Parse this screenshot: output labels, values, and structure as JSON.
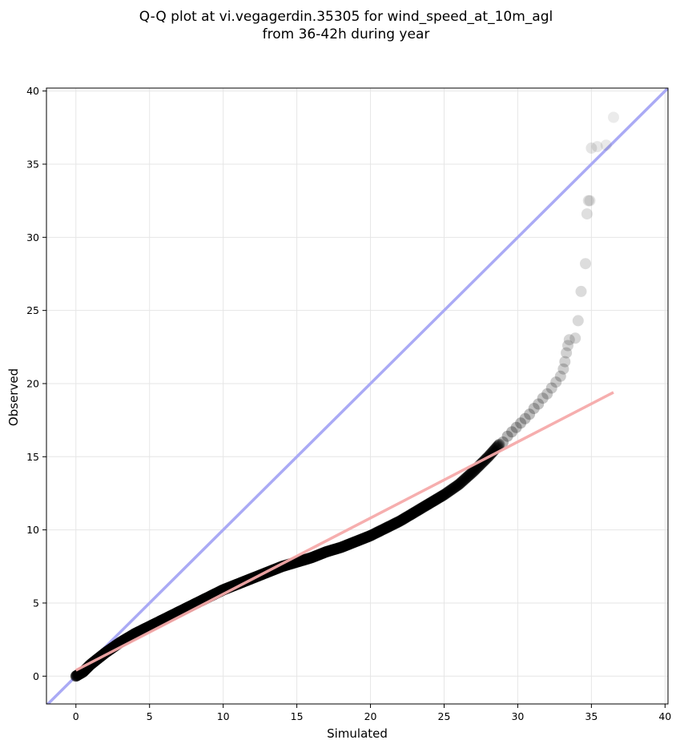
{
  "chart_data": {
    "type": "scatter",
    "title_line1": "Q-Q plot at vi.vegagerdin.35305 for wind_speed_at_10m_agl",
    "title_line2": "from 36-42h during year",
    "xlabel": "Simulated",
    "ylabel": "Observed",
    "xlim": [
      -2,
      40.2
    ],
    "ylim": [
      -1.9,
      40.2
    ],
    "xticks": [
      0,
      5,
      10,
      15,
      20,
      25,
      30,
      35,
      40
    ],
    "yticks": [
      0,
      5,
      10,
      15,
      20,
      25,
      30,
      35,
      40
    ],
    "grid": true,
    "colors": {
      "points": "#000000",
      "identity_line": "#aaaaf5",
      "fit_line": "#f5aaaa",
      "grid": "#e6e6e6"
    },
    "identity_line": {
      "x": [
        -2,
        40.2
      ],
      "y": [
        -2,
        40.2
      ]
    },
    "fit_line": {
      "x": [
        0,
        36.5
      ],
      "y": [
        0.4,
        19.4
      ]
    },
    "curve": [
      [
        0.0,
        0.0
      ],
      [
        0.5,
        0.3
      ],
      [
        1.0,
        0.8
      ],
      [
        2.0,
        1.6
      ],
      [
        3.0,
        2.3
      ],
      [
        4.0,
        2.9
      ],
      [
        5.0,
        3.4
      ],
      [
        6.0,
        3.9
      ],
      [
        7.0,
        4.4
      ],
      [
        8.0,
        4.9
      ],
      [
        9.0,
        5.4
      ],
      [
        10.0,
        5.9
      ],
      [
        11.0,
        6.3
      ],
      [
        12.0,
        6.7
      ],
      [
        13.0,
        7.1
      ],
      [
        14.0,
        7.5
      ],
      [
        15.0,
        7.8
      ],
      [
        16.0,
        8.1
      ],
      [
        17.0,
        8.5
      ],
      [
        18.0,
        8.8
      ],
      [
        19.0,
        9.2
      ],
      [
        20.0,
        9.6
      ],
      [
        21.0,
        10.1
      ],
      [
        22.0,
        10.6
      ],
      [
        23.0,
        11.2
      ],
      [
        24.0,
        11.8
      ],
      [
        25.0,
        12.4
      ],
      [
        26.0,
        13.1
      ],
      [
        27.0,
        14.0
      ],
      [
        28.0,
        15.0
      ],
      [
        28.8,
        15.9
      ]
    ],
    "tail_points": [
      [
        29.0,
        16.0
      ],
      [
        29.3,
        16.4
      ],
      [
        29.6,
        16.7
      ],
      [
        29.9,
        17.0
      ],
      [
        30.2,
        17.3
      ],
      [
        30.5,
        17.6
      ],
      [
        30.8,
        17.9
      ],
      [
        31.1,
        18.3
      ],
      [
        31.4,
        18.6
      ],
      [
        31.7,
        19.0
      ],
      [
        32.0,
        19.3
      ],
      [
        32.3,
        19.7
      ],
      [
        32.6,
        20.1
      ],
      [
        32.9,
        20.5
      ],
      [
        33.1,
        21.0
      ],
      [
        33.2,
        21.5
      ],
      [
        33.3,
        22.1
      ],
      [
        33.4,
        22.6
      ],
      [
        33.5,
        23.0
      ],
      [
        33.9,
        23.1
      ],
      [
        34.1,
        24.3
      ],
      [
        34.3,
        26.3
      ],
      [
        34.6,
        28.2
      ],
      [
        34.7,
        31.6
      ],
      [
        34.8,
        32.5
      ],
      [
        34.9,
        32.5
      ],
      [
        35.0,
        36.1
      ],
      [
        35.4,
        36.2
      ],
      [
        36.0,
        36.3
      ],
      [
        36.5,
        38.2
      ]
    ]
  }
}
